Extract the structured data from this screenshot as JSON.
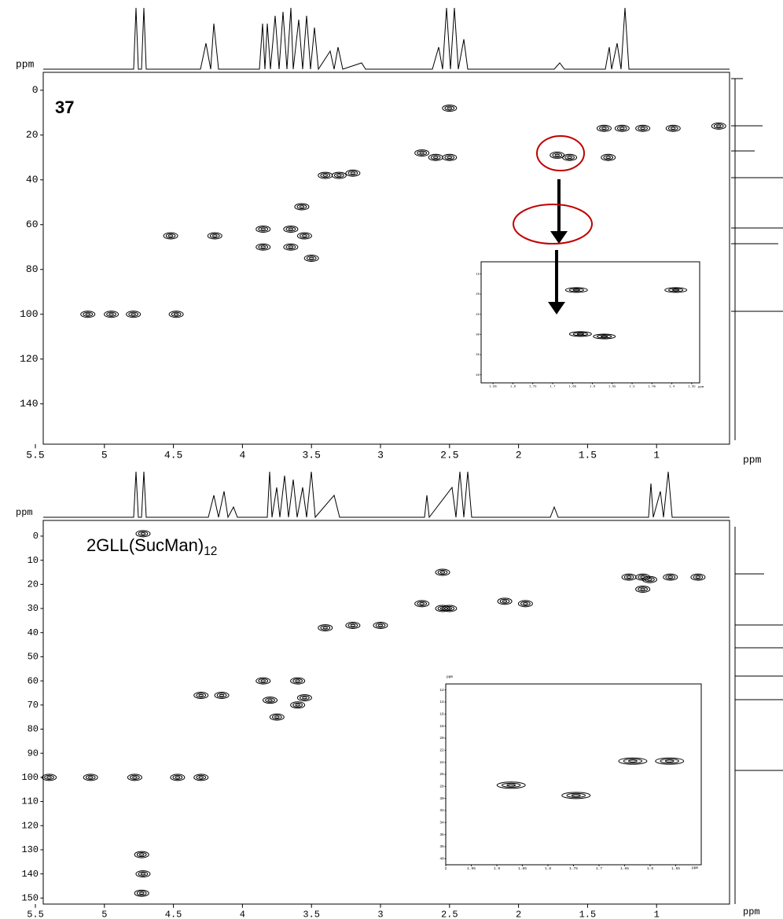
{
  "chart_data": [
    {
      "type": "contour",
      "label": {
        "text": "37"
      },
      "xlabel": "ppm",
      "ylabel": "ppm",
      "xlim": [
        5.5,
        0.5
      ],
      "xticks": [
        5.5,
        5.0,
        4.5,
        4.0,
        3.5,
        3.0,
        2.5,
        2.0,
        1.5,
        1.0
      ],
      "ylim": [
        -8,
        158
      ],
      "yticks": [
        0,
        20,
        40,
        60,
        80,
        100,
        120,
        140
      ],
      "x": [
        4.79,
        5.12,
        4.48,
        4.95,
        4.2,
        4.52,
        3.85,
        3.85,
        3.65,
        3.65,
        3.55,
        3.5,
        3.4,
        3.3,
        3.2,
        2.6,
        2.5,
        2.7,
        2.5,
        1.72,
        1.63,
        1.38,
        1.25,
        1.1,
        1.35,
        0.88,
        0.55,
        3.57
      ],
      "values": [
        100,
        100,
        100,
        100,
        65,
        65,
        62,
        70,
        62,
        70,
        65,
        75,
        38,
        38,
        37,
        30,
        30,
        28,
        8,
        29,
        30,
        17,
        17,
        17,
        30,
        17,
        16,
        52
      ]
    },
    {
      "type": "contour",
      "xlabel": "ppm",
      "xlim": [
        1.88,
        1.33
      ],
      "xticks": [
        1.85,
        1.8,
        1.75,
        1.7,
        1.65,
        1.6,
        1.55,
        1.5,
        1.45,
        1.4,
        1.35
      ],
      "ylim": [
        12,
        42
      ],
      "yticks": [
        15,
        20,
        25,
        30,
        35,
        40
      ],
      "x": [
        1.64,
        1.39,
        1.63,
        1.57
      ],
      "values": [
        19,
        19,
        29.9,
        30.5
      ]
    },
    {
      "type": "contour",
      "label": {
        "text": "2GLL(SucMan)",
        "subscript": "12"
      },
      "xlabel": "ppm",
      "ylabel": "ppm",
      "xlim": [
        5.5,
        0.5
      ],
      "xticks": [
        5.5,
        5.0,
        4.5,
        4.0,
        3.5,
        3.0,
        2.5,
        2.0,
        1.5,
        1.0
      ],
      "ylim": [
        -6.5,
        152.5
      ],
      "yticks": [
        0,
        10,
        20,
        30,
        40,
        50,
        60,
        70,
        80,
        90,
        100,
        110,
        120,
        130,
        140,
        150
      ],
      "x": [
        4.78,
        5.1,
        4.47,
        4.3,
        5.4,
        4.72,
        4.72,
        4.73,
        4.73,
        4.3,
        4.15,
        3.85,
        3.8,
        3.6,
        3.6,
        3.55,
        3.75,
        3.4,
        3.2,
        3.0,
        2.55,
        2.5,
        2.7,
        2.55,
        2.1,
        1.95,
        1.2,
        1.1,
        1.05,
        0.9,
        0.7,
        1.1
      ],
      "values": [
        100,
        100,
        100,
        100,
        100,
        -1,
        140,
        148,
        132,
        66,
        66,
        60,
        68,
        60,
        70,
        67,
        75,
        38,
        37,
        37,
        30,
        30,
        28,
        15,
        27,
        28,
        17,
        17,
        18,
        17,
        17,
        22
      ]
    },
    {
      "type": "contour",
      "xlabel": "ppm",
      "ylabel": "ppm",
      "xlim": [
        2.0,
        1.5
      ],
      "xticks": [
        2.0,
        1.95,
        1.9,
        1.85,
        1.8,
        1.75,
        1.7,
        1.65,
        1.6,
        1.55
      ],
      "ylim": [
        11,
        41
      ],
      "yticks": [
        12,
        14,
        16,
        18,
        20,
        22,
        24,
        26,
        28,
        30,
        32,
        34,
        36,
        38,
        40
      ],
      "x": [
        1.872,
        1.745,
        1.634,
        1.562
      ],
      "values": [
        27.8,
        29.5,
        23.8,
        23.8
      ]
    }
  ]
}
